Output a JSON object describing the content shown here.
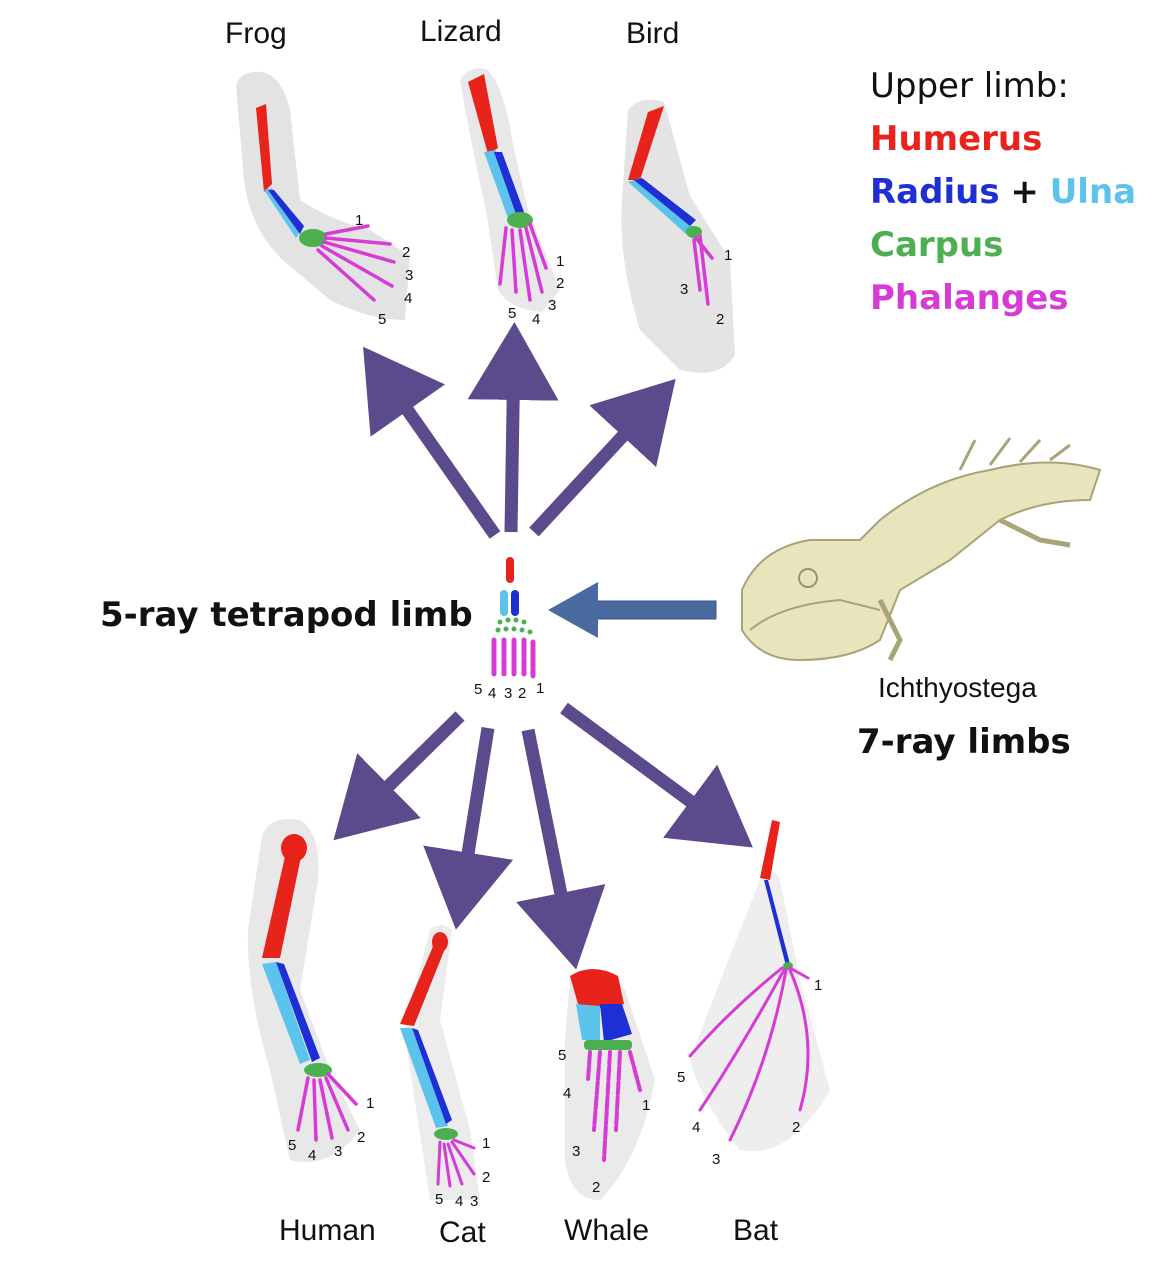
{
  "labels": {
    "frog": "Frog",
    "lizard": "Lizard",
    "bird": "Bird",
    "human": "Human",
    "cat": "Cat",
    "whale": "Whale",
    "bat": "Bat",
    "ancestral": "5-ray tetrapod limb",
    "fossil": "Ichthyostega",
    "fossil_limb": "7-ray limbs"
  },
  "legend": {
    "heading": "Upper limb:",
    "humerus": "Humerus",
    "radius": "Radius",
    "plus": "+",
    "ulna": "Ulna",
    "carpus": "Carpus",
    "phalanges": "Phalanges"
  },
  "colors": {
    "humerus": "#e8231c",
    "radius": "#1f2fd6",
    "ulna": "#5cc3ec",
    "carpus": "#4caf50",
    "phalanges": "#d63bd6",
    "arrow": "#5b4a8c",
    "fossil_arrow": "#4a6aa0",
    "skin": "#d9d9d9",
    "bone": "#e8e4bc"
  },
  "digits": {
    "frog": [
      "1",
      "2",
      "3",
      "4",
      "5"
    ],
    "lizard": [
      "1",
      "2",
      "3",
      "4",
      "5"
    ],
    "bird": [
      "1",
      "3",
      "2"
    ],
    "ancestral": [
      "5",
      "4",
      "3",
      "2",
      "1"
    ],
    "human": [
      "1",
      "2",
      "3",
      "4",
      "5"
    ],
    "cat": [
      "1",
      "2",
      "3",
      "4",
      "5"
    ],
    "whale": [
      "5",
      "4",
      "1",
      "3",
      "2"
    ],
    "bat": [
      "1",
      "5",
      "4",
      "2",
      "3"
    ]
  }
}
